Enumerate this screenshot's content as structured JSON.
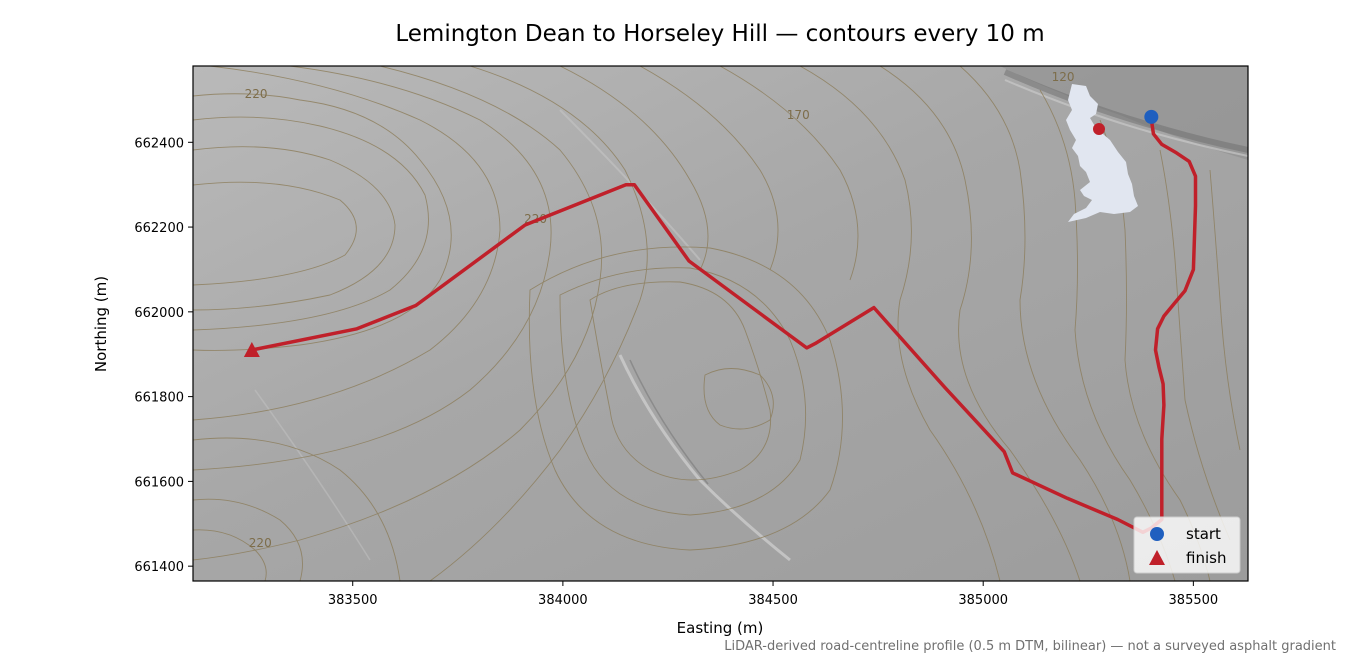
{
  "title": "Lemington Dean to Horseley Hill — contours every 10 m",
  "footnote": "LiDAR-derived road-centreline profile (0.5 m DTM, bilinear) — not a surveyed asphalt gradient",
  "axes": {
    "xlabel": "Easting (m)",
    "ylabel": "Northing (m)",
    "xlim": [
      383120,
      385630
    ],
    "ylim": [
      661365,
      662580
    ],
    "xticks": [
      {
        "value": 383500,
        "label": "383500"
      },
      {
        "value": 384000,
        "label": "384000"
      },
      {
        "value": 384500,
        "label": "384500"
      },
      {
        "value": 385000,
        "label": "385000"
      },
      {
        "value": 385500,
        "label": "385500"
      }
    ],
    "yticks": [
      {
        "value": 661400,
        "label": "661400"
      },
      {
        "value": 661600,
        "label": "661600"
      },
      {
        "value": 661800,
        "label": "661800"
      },
      {
        "value": 662000,
        "label": "662000"
      },
      {
        "value": 662200,
        "label": "662200"
      },
      {
        "value": 662400,
        "label": "662400"
      }
    ]
  },
  "contour_labels": [
    {
      "text": "220",
      "x": 383270,
      "y": 662505
    },
    {
      "text": "120",
      "x": 385190,
      "y": 662545
    },
    {
      "text": "170",
      "x": 384560,
      "y": 662455
    },
    {
      "text": "220",
      "x": 383935,
      "y": 662210
    },
    {
      "text": "220",
      "x": 383280,
      "y": 661445
    }
  ],
  "legend": {
    "position": "lower-right",
    "items": [
      {
        "label": "start",
        "marker": "circle",
        "color": "#1f5fbf"
      },
      {
        "label": "finish",
        "marker": "triangle",
        "color": "#c0202a"
      }
    ]
  },
  "inset": {
    "name": "uk-locator-map",
    "land_color": "#e1e6f0",
    "marker_color": "#c0202a"
  },
  "colors": {
    "route": "#c0202a",
    "start": "#1f5fbf",
    "finish": "#c0202a",
    "contour": "#8a7a55",
    "hillshade": "#a9a9a9"
  },
  "chart_data": {
    "type": "line",
    "series": [
      {
        "x": [
          385400,
          385405,
          385425,
          385460,
          385490,
          385505,
          385505,
          385500,
          385480,
          385455,
          385430,
          385415,
          385410,
          385418,
          385428,
          385430,
          385425,
          385425,
          385425,
          385400,
          385380,
          385320,
          385200,
          385070,
          385050,
          384910,
          384740,
          384600,
          384580,
          384300,
          384170,
          384150,
          383910,
          383650,
          383510,
          383260
        ],
        "y": [
          662455,
          662420,
          662395,
          662375,
          662355,
          662320,
          662250,
          662100,
          662050,
          662020,
          661990,
          661960,
          661910,
          661870,
          661830,
          661780,
          661700,
          661600,
          661510,
          661490,
          661480,
          661510,
          661560,
          661620,
          661670,
          661820,
          662010,
          661925,
          661915,
          662120,
          662300,
          662300,
          662205,
          662015,
          661960,
          661910
        ]
      }
    ],
    "start": {
      "label": "start",
      "x": 385400,
      "y": 662460
    },
    "finish": {
      "label": "finish",
      "x": 383260,
      "y": 661910
    },
    "xlim": [
      383120,
      385630
    ],
    "ylim": [
      661365,
      662580
    ],
    "xlabel": "Easting (m)",
    "ylabel": "Northing (m)",
    "title": "Lemington Dean to Horseley Hill — contours every 10 m",
    "grid": false,
    "legend": "lower-right"
  }
}
